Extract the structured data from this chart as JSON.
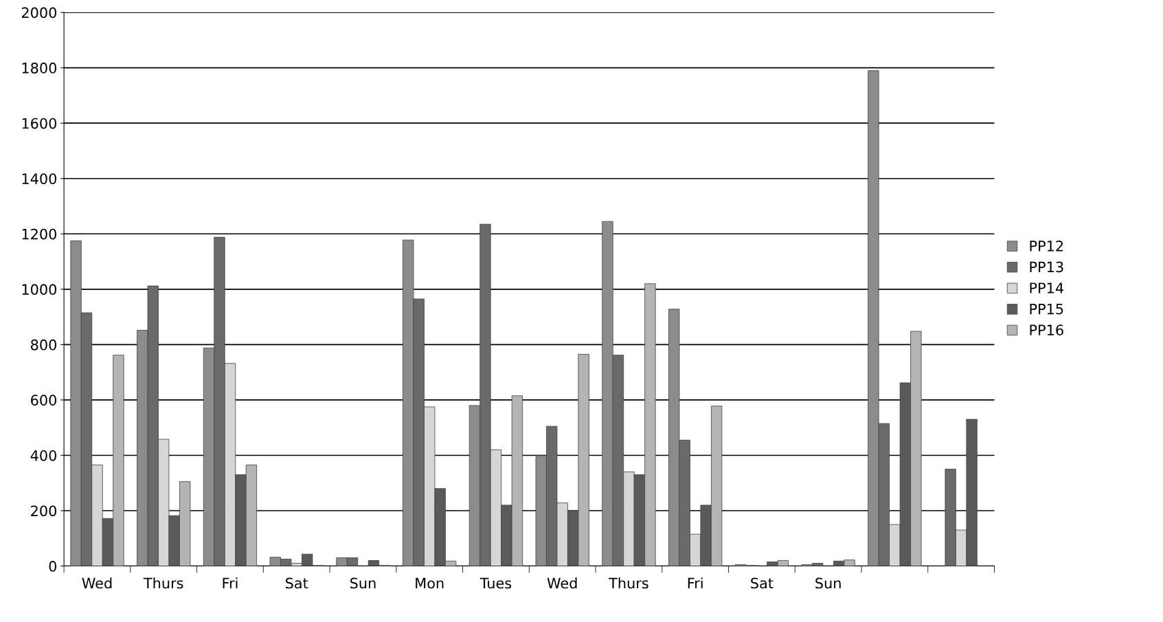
{
  "chart_data": {
    "type": "bar",
    "categories": [
      "Wed",
      "Thurs",
      "Fri",
      "Sat",
      "Sun",
      "Mon",
      "Tues",
      "Wed",
      "Thurs",
      "Fri",
      "Sat",
      "Sun",
      null,
      null
    ],
    "series": [
      {
        "name": "PP12",
        "color": "#8c8c8c",
        "values": [
          1175,
          852,
          788,
          32,
          30,
          1178,
          580,
          395,
          1245,
          928,
          5,
          5,
          1790,
          null
        ]
      },
      {
        "name": "PP13",
        "color": "#6a6a6a",
        "values": [
          915,
          1012,
          1188,
          25,
          30,
          965,
          1235,
          505,
          762,
          455,
          2,
          10,
          515,
          350
        ]
      },
      {
        "name": "PP14",
        "color": "#d6d6d6",
        "values": [
          365,
          458,
          732,
          10,
          null,
          575,
          420,
          228,
          340,
          115,
          null,
          null,
          150,
          130
        ]
      },
      {
        "name": "PP15",
        "color": "#5a5a5a",
        "values": [
          172,
          182,
          330,
          43,
          20,
          280,
          220,
          200,
          330,
          220,
          15,
          18,
          662,
          530
        ]
      },
      {
        "name": "PP16",
        "color": "#b4b4b4",
        "values": [
          762,
          305,
          365,
          2,
          2,
          18,
          615,
          765,
          1020,
          578,
          20,
          22,
          848,
          null
        ]
      }
    ],
    "ylim": [
      0,
      2000
    ],
    "yticks": [
      0,
      200,
      400,
      600,
      800,
      1000,
      1200,
      1400,
      1600,
      1800,
      2000
    ],
    "grid": "y",
    "legend": "right"
  }
}
